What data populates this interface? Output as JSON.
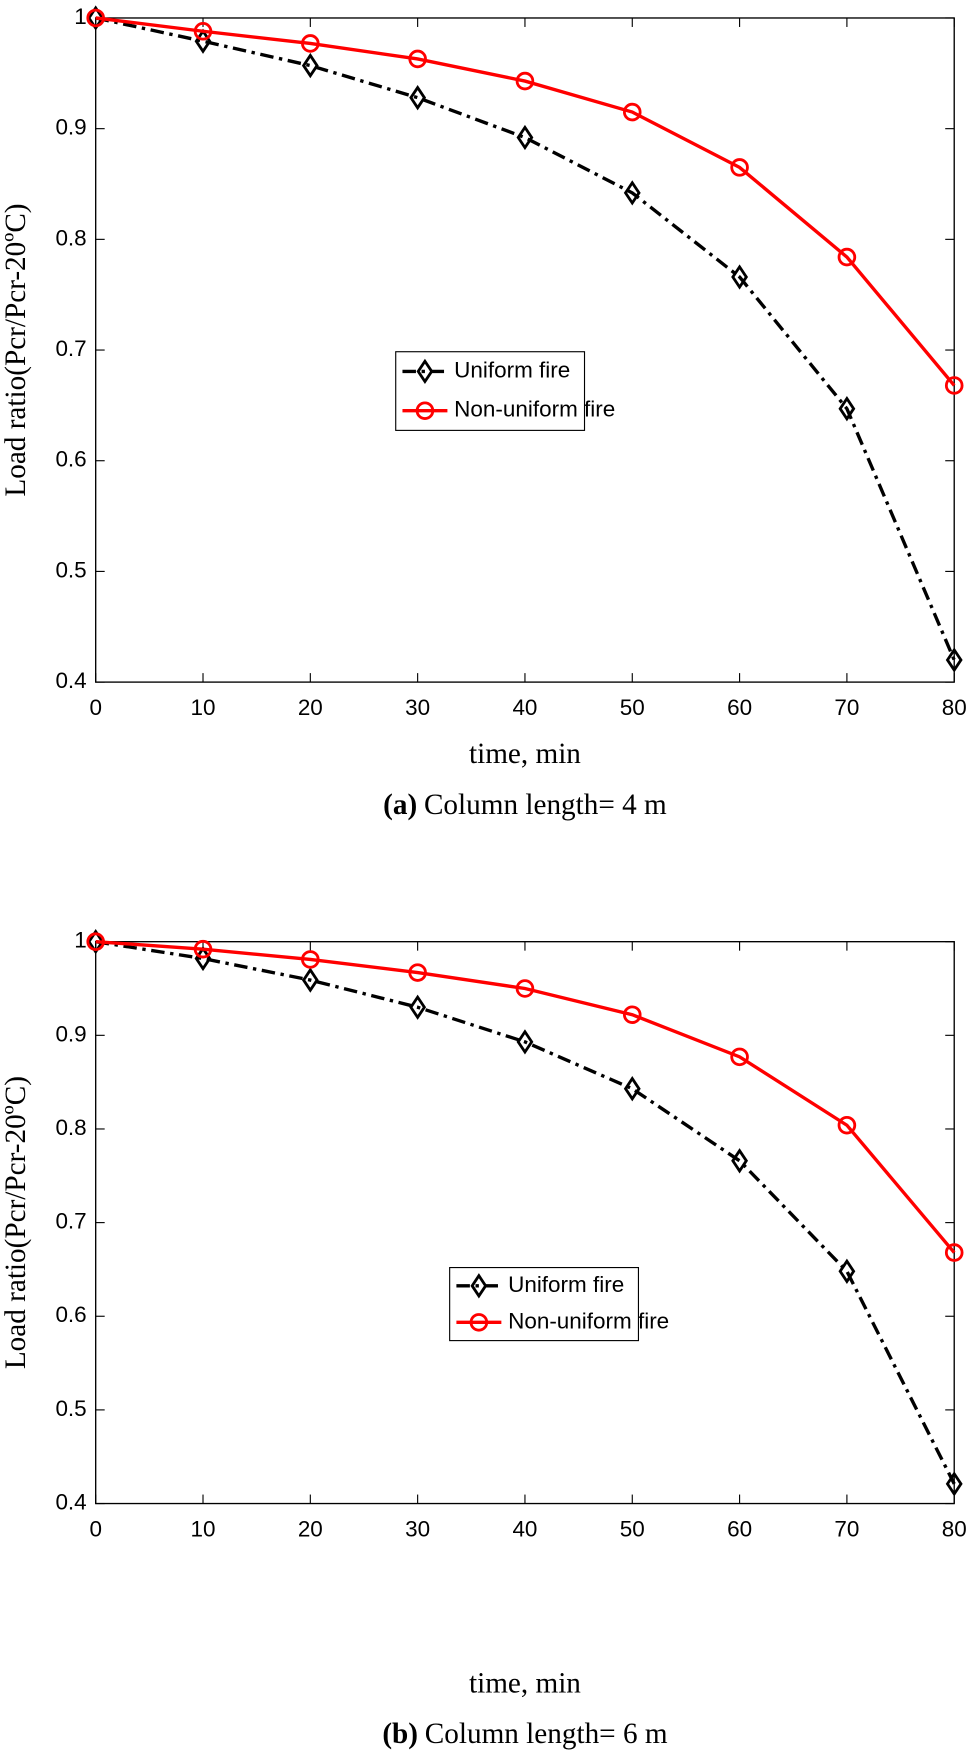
{
  "chart_data": [
    {
      "type": "line",
      "caption_label": "(a)",
      "caption": "Column length= 4 m",
      "xlabel": "time, min",
      "ylabel": "Load ratio(Pcr/Pcr-20ºC)",
      "x": [
        0,
        10,
        20,
        30,
        40,
        50,
        60,
        70,
        80
      ],
      "xlim": [
        0,
        80
      ],
      "xticks": [
        0,
        10,
        20,
        30,
        40,
        50,
        60,
        70,
        80
      ],
      "ylim": [
        0.4,
        1
      ],
      "yticks": [
        0.4,
        0.5,
        0.6,
        0.7,
        0.8,
        0.9,
        1
      ],
      "grid": false,
      "series": [
        {
          "name": "Uniform fire",
          "color": "#000000",
          "marker": "diamond",
          "linestyle": "dashdot",
          "values": [
            1.0,
            0.979,
            0.957,
            0.928,
            0.892,
            0.842,
            0.766,
            0.647,
            0.42
          ]
        },
        {
          "name": "Non-uniform fire",
          "color": "#ff0000",
          "marker": "circle",
          "linestyle": "solid",
          "values": [
            1.0,
            0.988,
            0.977,
            0.963,
            0.943,
            0.915,
            0.865,
            0.784,
            0.668
          ]
        }
      ]
    },
    {
      "type": "line",
      "caption_label": "(b)",
      "caption": "Column length= 6 m",
      "xlabel": "time, min",
      "ylabel": "Load ratio(Pcr/Pcr-20ºC)",
      "x": [
        0,
        10,
        20,
        30,
        40,
        50,
        60,
        70,
        80
      ],
      "xlim": [
        0,
        80
      ],
      "xticks": [
        0,
        10,
        20,
        30,
        40,
        50,
        60,
        70,
        80
      ],
      "ylim": [
        0.4,
        1
      ],
      "yticks": [
        0.4,
        0.5,
        0.6,
        0.7,
        0.8,
        0.9,
        1
      ],
      "grid": false,
      "series": [
        {
          "name": "Uniform fire",
          "color": "#000000",
          "marker": "diamond",
          "linestyle": "dashdot",
          "values": [
            1.0,
            0.982,
            0.959,
            0.93,
            0.893,
            0.843,
            0.766,
            0.648,
            0.421
          ]
        },
        {
          "name": "Non-uniform fire",
          "color": "#ff0000",
          "marker": "circle",
          "linestyle": "solid",
          "values": [
            1.0,
            0.992,
            0.981,
            0.967,
            0.95,
            0.922,
            0.877,
            0.804,
            0.668
          ]
        }
      ]
    }
  ]
}
